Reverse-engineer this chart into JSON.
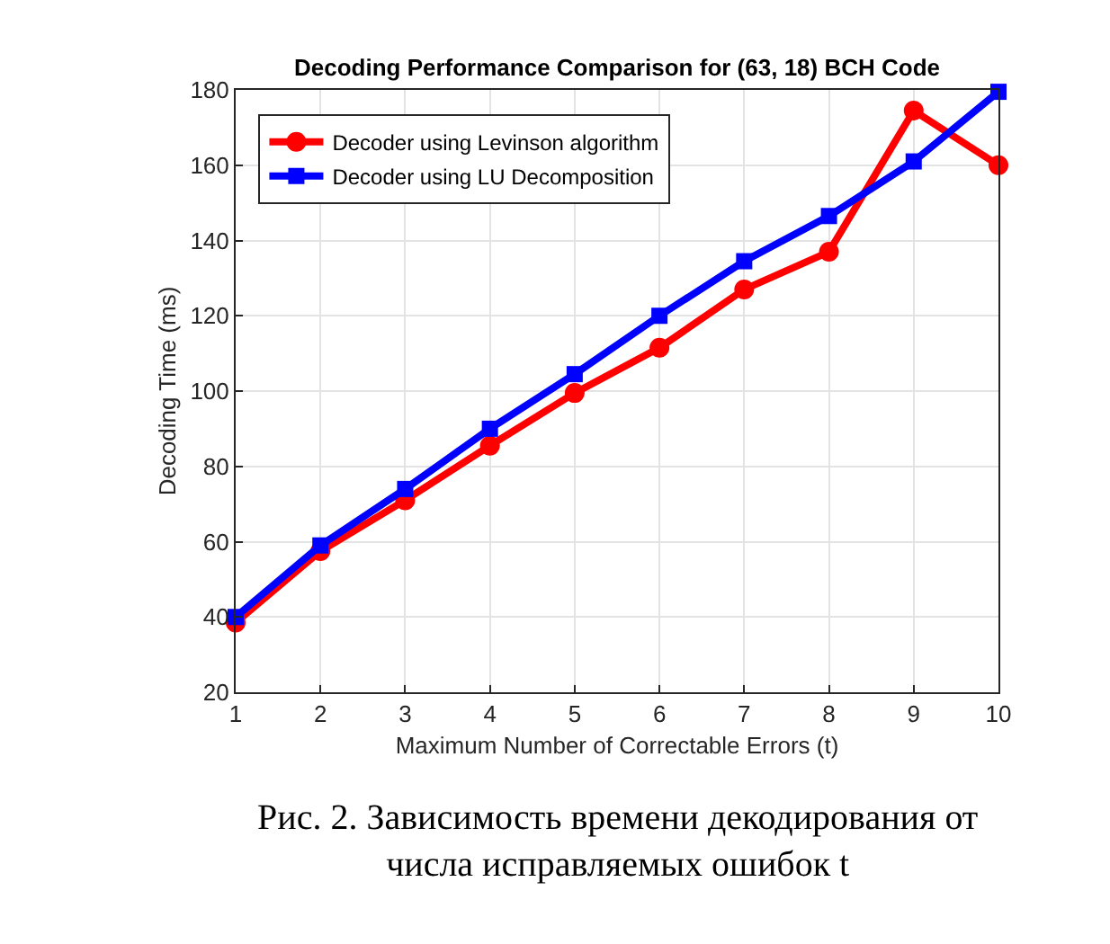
{
  "chart_data": {
    "type": "line",
    "title": "Decoding Performance Comparison for (63, 18) BCH Code",
    "xlabel": "Maximum Number of Correctable Errors (t)",
    "ylabel": "Decoding Time (ms)",
    "x": [
      1,
      2,
      3,
      4,
      5,
      6,
      7,
      8,
      9,
      10
    ],
    "series": [
      {
        "name": "Decoder using Levinson algorithm",
        "color": "#ff0000",
        "marker": "circle",
        "values": [
          38.5,
          57.5,
          71,
          85.5,
          99.5,
          111.5,
          127,
          137,
          174.5,
          160
        ]
      },
      {
        "name": "Decoder using LU Decomposition",
        "color": "#0000ff",
        "marker": "square",
        "values": [
          40,
          59,
          74,
          90,
          104.5,
          120,
          134.5,
          146.5,
          161,
          179.5
        ]
      }
    ],
    "xlim": [
      1,
      10
    ],
    "xticks": [
      1,
      2,
      3,
      4,
      5,
      6,
      7,
      8,
      9,
      10
    ],
    "ylim": [
      20,
      180
    ],
    "yticks": [
      20,
      40,
      60,
      80,
      100,
      120,
      140,
      160,
      180
    ],
    "grid": true,
    "legend": "top left",
    "line_style": "solid",
    "annotations": [
      "Рис. 2. Зависимость времени декодирования от числа исправляемых ошибок t"
    ]
  }
}
